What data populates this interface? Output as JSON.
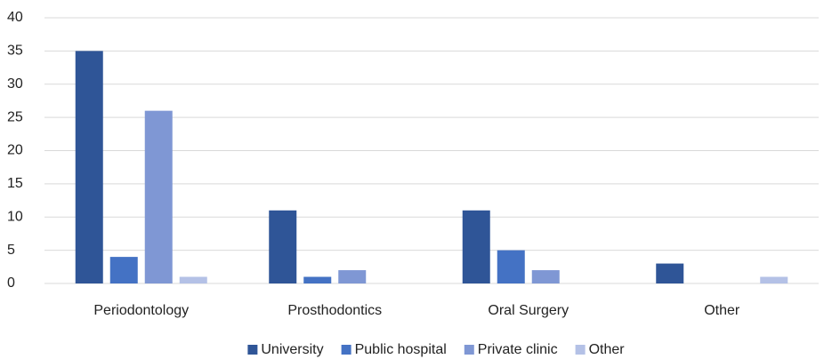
{
  "chart_data": {
    "type": "bar",
    "categories": [
      "Periodontology",
      "Prosthodontics",
      "Oral Surgery",
      "Other"
    ],
    "series": [
      {
        "name": "University",
        "color": "#2f5597",
        "values": [
          35,
          11,
          11,
          3
        ]
      },
      {
        "name": "Public hospital",
        "color": "#4472c4",
        "values": [
          4,
          1,
          5,
          0
        ]
      },
      {
        "name": "Private clinic",
        "color": "#7f97d4",
        "values": [
          26,
          2,
          2,
          0
        ]
      },
      {
        "name": "Other",
        "color": "#b4c1e6",
        "values": [
          1,
          0,
          0,
          1
        ]
      }
    ],
    "ylim": [
      0,
      40
    ],
    "yticks": [
      0,
      5,
      10,
      15,
      20,
      25,
      30,
      35,
      40
    ],
    "grid": true,
    "legend": "bottom"
  }
}
